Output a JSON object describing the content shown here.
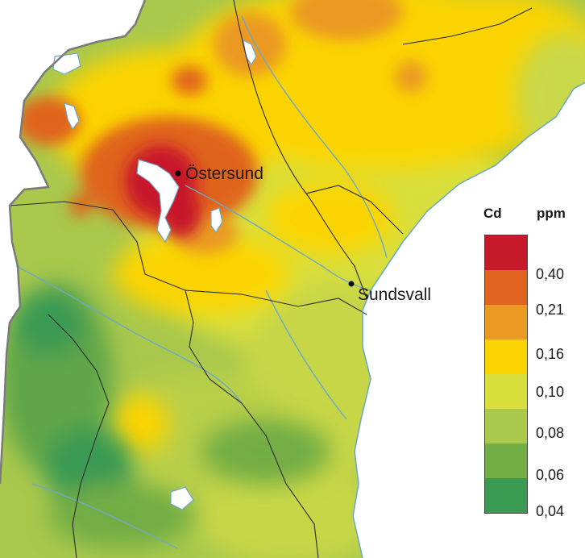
{
  "map": {
    "places": [
      {
        "name": "Östersund"
      },
      {
        "name": "Sundsvall"
      }
    ]
  },
  "legend": {
    "element": "Cd",
    "unit": "ppm",
    "classes": [
      {
        "color": "#c8192a"
      },
      {
        "color": "#e0631f"
      },
      {
        "color": "#ea9a22"
      },
      {
        "color": "#fbd400"
      },
      {
        "color": "#d8df3c"
      },
      {
        "color": "#a9c84c"
      },
      {
        "color": "#73ad45"
      },
      {
        "color": "#3a9a52"
      }
    ],
    "breaks": [
      "0,40",
      "0,21",
      "0,16",
      "0,10",
      "0,08",
      "0,06",
      "0,04"
    ]
  }
}
